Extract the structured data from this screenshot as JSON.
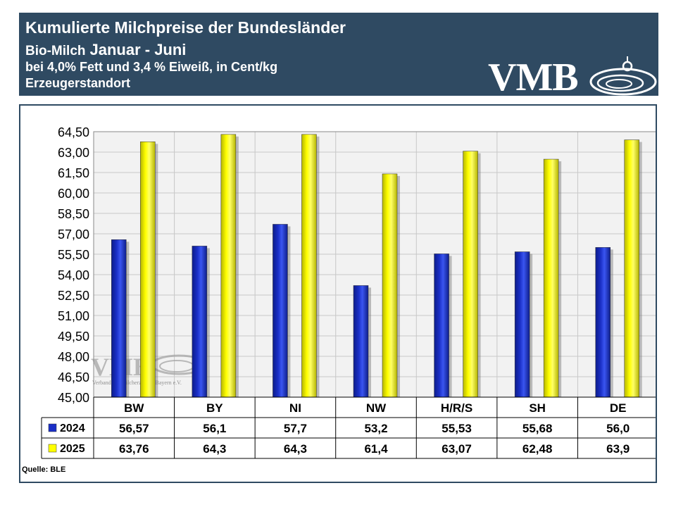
{
  "header": {
    "title": "Kumulierte Milchpreise der Bundesländer",
    "subtitle_prefix": "Bio-Milch",
    "subtitle_period": "Januar - Juni",
    "description": "bei 4,0% Fett und 3,4 % Eiweiß, in Cent/kg",
    "location": "Erzeugerstandort",
    "logo_text": "VMB"
  },
  "watermark": {
    "logo_text": "VMB",
    "caption": "Verband der Milcherzeuger Bayern e.V."
  },
  "source": "Quelle:  BLE",
  "colors": {
    "header_bg": "#2f4a62",
    "series_2024": "#1a2fc7",
    "series_2025": "#ffff00",
    "plot_bg": "#f2f2f2"
  },
  "chart_data": {
    "type": "bar",
    "categories": [
      "BW",
      "BY",
      "NI",
      "NW",
      "H/R/S",
      "SH",
      "DE"
    ],
    "series": [
      {
        "name": "2024",
        "values": [
          56.57,
          56.1,
          57.7,
          53.2,
          55.53,
          55.68,
          56.0
        ],
        "labels": [
          "56,57",
          "56,1",
          "57,7",
          "53,2",
          "55,53",
          "55,68",
          "56,0"
        ]
      },
      {
        "name": "2025",
        "values": [
          63.76,
          64.3,
          64.3,
          61.4,
          63.07,
          62.48,
          63.9
        ],
        "labels": [
          "63,76",
          "64,3",
          "64,3",
          "61,4",
          "63,07",
          "62,48",
          "63,9"
        ]
      }
    ],
    "ylim": [
      45.0,
      64.5
    ],
    "yticks": [
      "45,00",
      "46,50",
      "48,00",
      "49,50",
      "51,00",
      "52,50",
      "54,00",
      "55,50",
      "57,00",
      "58,50",
      "60,00",
      "61,50",
      "63,00",
      "64,50"
    ],
    "legend": "data-table",
    "grid": true
  }
}
